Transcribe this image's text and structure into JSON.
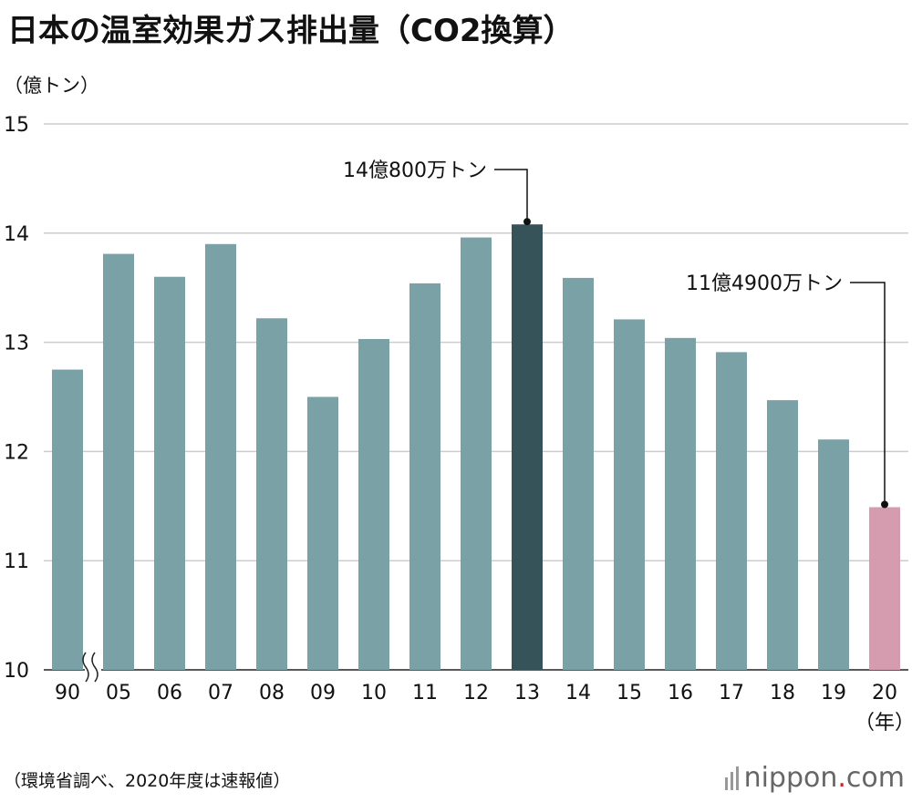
{
  "title": "日本の温室効果ガス排出量（CO2換算）",
  "unit_label": "（億トン）",
  "source_note": "（環境省調べ、2020年度は速報値）",
  "brand": {
    "name": "nippon",
    "dot": ".",
    "tld": "com"
  },
  "colors": {
    "default": "#7aa1a6",
    "highlight": "#37535a",
    "latest": "#d49cae",
    "grid": "#cccccc"
  },
  "chart_data": {
    "type": "bar",
    "categories": [
      "90",
      "05",
      "06",
      "07",
      "08",
      "09",
      "10",
      "11",
      "12",
      "13",
      "14",
      "15",
      "16",
      "17",
      "18",
      "19",
      "20"
    ],
    "values": [
      12.75,
      13.81,
      13.6,
      13.9,
      13.22,
      12.5,
      13.03,
      13.54,
      13.96,
      14.08,
      13.59,
      13.21,
      13.04,
      12.91,
      12.47,
      12.11,
      11.49
    ],
    "highlight_index": 9,
    "latest_index": 16,
    "ylim": [
      10,
      15
    ],
    "yticks": [
      10,
      11,
      12,
      13,
      14,
      15
    ],
    "xlabel_suffix": "（年）",
    "axis_break_between": [
      "90",
      "05"
    ],
    "grid": true,
    "annotations": [
      {
        "category": "13",
        "text": "14億800万トン"
      },
      {
        "category": "20",
        "text": "11億4900万トン"
      }
    ]
  }
}
